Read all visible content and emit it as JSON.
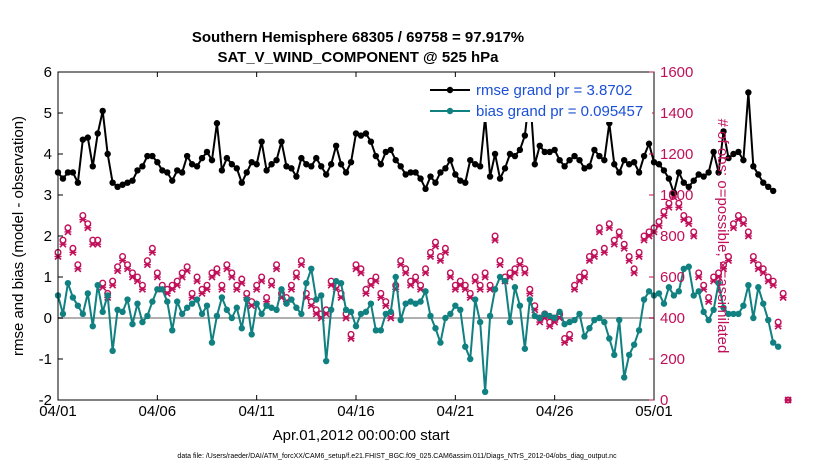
{
  "chart_data": {
    "type": "line",
    "title": "Southern Hemisphere 68305 / 69758 = 97.917%",
    "subtitle": "SAT_V_WIND_COMPONENT @ 525 hPa",
    "xlabel": "Apr.01,2012 00:00:00 start",
    "ylabel": "rmse and bias (model - observation)",
    "y2label": "# of obs: o=possible; ×=assimilated",
    "footnote": "data file: /Users/raeder/DAI/ATM_forcXX/CAM6_setup/f.e21.FHIST_BGC.f09_025.CAM6assim.011/Diags_NTrS_2012-04/obs_diag_output.nc",
    "xlim": [
      0,
      30
    ],
    "ylim": [
      -2,
      6
    ],
    "y2lim": [
      0,
      1600
    ],
    "xticks": [
      0,
      5,
      10,
      15,
      20,
      25,
      30
    ],
    "xtick_labels": [
      "04/01",
      "04/06",
      "04/11",
      "04/16",
      "04/21",
      "04/26",
      "05/01"
    ],
    "yticks": [
      -2,
      -1,
      0,
      1,
      2,
      3,
      4,
      5,
      6
    ],
    "ytick_labels": [
      "-2",
      "-1",
      "0",
      "1",
      "2",
      "3",
      "4",
      "5",
      "6"
    ],
    "y2ticks": [
      0,
      200,
      400,
      600,
      800,
      1000,
      1200,
      1400,
      1600
    ],
    "y2tick_labels": [
      "0",
      "200",
      "400",
      "600",
      "800",
      "1000",
      "1200",
      "1400",
      "1600"
    ],
    "x_step_days": 0.25,
    "series": [
      {
        "name": "rmse grand pr = 3.8702",
        "color": "#000000",
        "axis": "left",
        "values": [
          3.55,
          3.4,
          3.55,
          3.55,
          3.3,
          4.35,
          4.4,
          3.7,
          4.5,
          5.05,
          4.0,
          3.3,
          3.2,
          3.25,
          3.3,
          3.35,
          3.6,
          3.7,
          3.95,
          3.95,
          3.8,
          3.6,
          3.55,
          3.35,
          3.6,
          3.55,
          3.95,
          3.75,
          3.7,
          3.9,
          4.05,
          3.85,
          4.75,
          3.6,
          3.9,
          3.75,
          3.65,
          3.3,
          3.55,
          3.8,
          3.75,
          4.3,
          3.6,
          3.75,
          3.85,
          4.3,
          3.7,
          3.65,
          3.45,
          3.9,
          3.75,
          3.7,
          3.9,
          3.7,
          3.5,
          3.75,
          4.2,
          3.75,
          3.55,
          3.8,
          4.5,
          4.45,
          4.5,
          4.3,
          3.95,
          3.75,
          4.05,
          4.1,
          3.85,
          3.7,
          3.5,
          3.55,
          3.55,
          3.4,
          3.15,
          3.45,
          3.3,
          3.55,
          3.65,
          3.85,
          3.5,
          3.35,
          3.3,
          3.85,
          3.75,
          3.7,
          4.9,
          3.45,
          4.0,
          3.4,
          3.65,
          4.0,
          3.95,
          4.1,
          4.45,
          5.5,
          3.75,
          4.2,
          4.05,
          4.05,
          4.1,
          3.85,
          3.7,
          3.85,
          3.95,
          3.85,
          3.65,
          3.7,
          4.1,
          3.95,
          3.85,
          4.75,
          3.75,
          3.55,
          3.85,
          3.75,
          3.8,
          3.55,
          3.95,
          4.25,
          3.8,
          3.75,
          3.6,
          3.4,
          3.05,
          3.55,
          3.3,
          3.2,
          3.35,
          3.5,
          3.45,
          3.55,
          4.05,
          3.55,
          4.55,
          3.9,
          4.0,
          4.05,
          3.85,
          5.5,
          3.7,
          3.5,
          3.3,
          3.2,
          3.1
        ]
      },
      {
        "name": "bias grand pr = 0.095457",
        "color": "#108080",
        "axis": "left",
        "values": [
          0.55,
          0.1,
          0.85,
          0.5,
          0.3,
          0.1,
          0.6,
          -0.2,
          0.8,
          0.15,
          0.55,
          -0.8,
          0.2,
          0.15,
          0.45,
          -0.15,
          0.35,
          -0.1,
          0.05,
          0.4,
          0.7,
          0.7,
          0.4,
          -0.3,
          0.4,
          0.1,
          0.25,
          0.35,
          0.45,
          0.1,
          0.3,
          -0.6,
          0.05,
          0.5,
          0.2,
          0.0,
          0.25,
          -0.25,
          0.45,
          -0.4,
          0.35,
          0.1,
          0.3,
          0.25,
          0.2,
          0.7,
          0.35,
          0.45,
          0.25,
          0.1,
          0.85,
          1.2,
          0.45,
          0.55,
          -1.05,
          0.2,
          0.9,
          0.85,
          0.2,
          0.15,
          -0.2,
          0.1,
          0.15,
          0.35,
          -0.3,
          -0.3,
          0.1,
          0.15,
          1.0,
          -0.05,
          0.35,
          0.4,
          0.35,
          0.4,
          0.65,
          0.05,
          -0.25,
          -0.6,
          0.0,
          0.1,
          0.3,
          0.2,
          -0.7,
          -1.0,
          0.45,
          -0.1,
          -1.8,
          0.05,
          0.7,
          1.0,
          0.9,
          -0.1,
          0.75,
          0.3,
          -0.75,
          0.45,
          0.05,
          0.0,
          0.1,
          0.05,
          0.0,
          0.15,
          -0.15,
          -0.1,
          -0.05,
          0.1,
          -0.45,
          -0.25,
          -0.05,
          0.0,
          -0.1,
          -0.5,
          -0.9,
          -0.05,
          -1.45,
          -0.9,
          -0.65,
          -0.3,
          0.45,
          0.65,
          0.55,
          0.6,
          0.35,
          0.75,
          0.55,
          0.65,
          1.2,
          1.25,
          0.55,
          0.65,
          0.15,
          -0.05,
          0.2,
          0.85,
          0.25,
          0.1,
          0.1,
          0.1,
          0.3,
          0.8,
          0.0,
          0.75,
          0.35,
          -0.05,
          -0.6,
          -0.7
        ]
      },
      {
        "name": "# of obs possible",
        "marker": "o",
        "color": "#c0105a",
        "axis": "right",
        "values": [
          720,
          780,
          840,
          740,
          660,
          900,
          860,
          780,
          780,
          570,
          520,
          580,
          650,
          700,
          660,
          620,
          600,
          560,
          680,
          740,
          620,
          560,
          540,
          560,
          580,
          620,
          650,
          520,
          600,
          540,
          560,
          620,
          640,
          560,
          660,
          620,
          560,
          590,
          520,
          480,
          560,
          600,
          500,
          580,
          660,
          520,
          500,
          560,
          620,
          680,
          520,
          480,
          440,
          420,
          440,
          580,
          560,
          520,
          420,
          320,
          660,
          640,
          540,
          580,
          600,
          520,
          480,
          420,
          560,
          680,
          640,
          580,
          600,
          560,
          640,
          720,
          770,
          700,
          740,
          620,
          560,
          580,
          560,
          520,
          600,
          560,
          620,
          560,
          800,
          680,
          600,
          620,
          640,
          680,
          640,
          540,
          460,
          400,
          420,
          380,
          400,
          420,
          300,
          320,
          560,
          600,
          620,
          700,
          720,
          840,
          740,
          860,
          780,
          820,
          760,
          700,
          640,
          720,
          800,
          820,
          840,
          870,
          920,
          960,
          1010,
          960,
          900,
          880,
          820,
          620,
          560,
          500,
          600,
          620,
          660,
          700,
          860,
          900,
          880,
          820,
          700,
          660,
          640,
          600,
          580,
          380,
          520,
          0
        ]
      },
      {
        "name": "# of obs assimilated",
        "marker": "×",
        "color": "#c0105a",
        "axis": "right",
        "values": [
          700,
          760,
          820,
          720,
          640,
          880,
          840,
          760,
          760,
          550,
          500,
          560,
          630,
          680,
          640,
          600,
          580,
          540,
          660,
          720,
          600,
          540,
          520,
          540,
          560,
          600,
          630,
          500,
          580,
          520,
          540,
          600,
          620,
          540,
          640,
          600,
          540,
          570,
          500,
          460,
          540,
          580,
          480,
          560,
          640,
          500,
          480,
          540,
          600,
          660,
          500,
          460,
          420,
          400,
          420,
          560,
          540,
          500,
          400,
          300,
          640,
          620,
          520,
          560,
          580,
          500,
          460,
          400,
          540,
          660,
          620,
          560,
          580,
          540,
          620,
          700,
          750,
          680,
          720,
          600,
          540,
          560,
          540,
          500,
          580,
          540,
          600,
          540,
          780,
          660,
          580,
          600,
          620,
          660,
          620,
          520,
          440,
          380,
          400,
          360,
          380,
          400,
          280,
          300,
          540,
          580,
          600,
          680,
          700,
          820,
          720,
          840,
          760,
          800,
          740,
          680,
          620,
          700,
          780,
          800,
          820,
          850,
          900,
          940,
          990,
          940,
          880,
          860,
          800,
          600,
          540,
          480,
          580,
          600,
          640,
          680,
          840,
          880,
          860,
          800,
          680,
          640,
          620,
          580,
          560,
          360,
          500,
          0
        ]
      }
    ],
    "legend": {
      "position": "top-right",
      "entries": [
        "rmse grand pr = 3.8702",
        "bias grand pr = 0.095457"
      ]
    }
  },
  "colors": {
    "rmse": "#000000",
    "bias": "#108080",
    "obs": "#c0105a",
    "legend_text": "#1a4fd6",
    "zero_line": "#b0b0b0"
  }
}
